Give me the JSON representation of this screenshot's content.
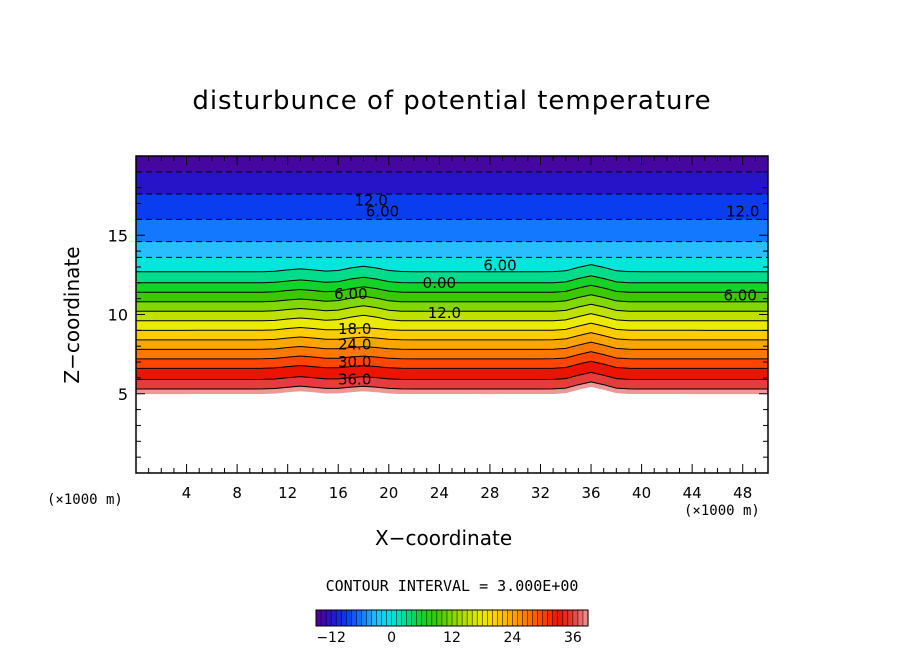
{
  "chart_data": {
    "type": "heatmap",
    "title": "disturbunce of potential temperature",
    "xlabel": "X−coordinate",
    "ylabel": "Z−coordinate",
    "x_unit": "(×1000 m)",
    "y_unit": "(×1000 m)",
    "xlim": [
      0,
      50
    ],
    "ylim": [
      0,
      20
    ],
    "x_ticks": [
      4,
      8,
      12,
      16,
      20,
      24,
      28,
      32,
      36,
      40,
      44,
      48
    ],
    "y_ticks": [
      5,
      10,
      15
    ],
    "contour_interval_text": "CONTOUR INTERVAL = 3.000E+00",
    "contour_labels": [
      {
        "text": "12.0",
        "x": 18.6,
        "y": 17.2
      },
      {
        "text": "6.00",
        "x": 19.5,
        "y": 16.5
      },
      {
        "text": "6.00",
        "x": 28.8,
        "y": 13.1
      },
      {
        "text": "12.0",
        "x": 48.0,
        "y": 16.5
      },
      {
        "text": "0.00",
        "x": 24.0,
        "y": 12.0
      },
      {
        "text": "6.00",
        "x": 17.0,
        "y": 11.3
      },
      {
        "text": "6.00",
        "x": 47.8,
        "y": 11.2
      },
      {
        "text": "12.0",
        "x": 24.4,
        "y": 10.1
      },
      {
        "text": "18.0",
        "x": 17.3,
        "y": 9.1
      },
      {
        "text": "24.0",
        "x": 17.3,
        "y": 8.1
      },
      {
        "text": "30.0",
        "x": 17.3,
        "y": 7.0
      },
      {
        "text": "36.0",
        "x": 17.3,
        "y": 5.9
      }
    ],
    "color_levels": [
      -15,
      -12,
      -9,
      -6,
      -3,
      0,
      3,
      6,
      9,
      12,
      15,
      18,
      21,
      24,
      27,
      30,
      33,
      36,
      39
    ],
    "colorbar_ticks": [
      -12,
      0,
      12,
      24,
      36
    ],
    "field_bands": [
      {
        "from_z": 5.0,
        "to_z": 5.3,
        "value": 39
      },
      {
        "from_z": 5.3,
        "to_z": 5.9,
        "value": 36
      },
      {
        "from_z": 5.9,
        "to_z": 6.6,
        "value": 33
      },
      {
        "from_z": 6.6,
        "to_z": 7.2,
        "value": 30
      },
      {
        "from_z": 7.2,
        "to_z": 7.8,
        "value": 27
      },
      {
        "from_z": 7.8,
        "to_z": 8.4,
        "value": 24
      },
      {
        "from_z": 8.4,
        "to_z": 9.0,
        "value": 21
      },
      {
        "from_z": 9.0,
        "to_z": 9.6,
        "value": 18
      },
      {
        "from_z": 9.6,
        "to_z": 10.2,
        "value": 15
      },
      {
        "from_z": 10.2,
        "to_z": 10.8,
        "value": 12
      },
      {
        "from_z": 10.8,
        "to_z": 11.4,
        "value": 9
      },
      {
        "from_z": 11.4,
        "to_z": 12.0,
        "value": 6
      },
      {
        "from_z": 12.0,
        "to_z": 12.7,
        "value": 3
      },
      {
        "from_z": 12.7,
        "to_z": 13.6,
        "value": 0
      },
      {
        "from_z": 13.6,
        "to_z": 14.6,
        "value": -3
      },
      {
        "from_z": 14.6,
        "to_z": 16.0,
        "value": -6
      },
      {
        "from_z": 16.0,
        "to_z": 17.6,
        "value": -9
      },
      {
        "from_z": 17.6,
        "to_z": 19.0,
        "value": -12
      },
      {
        "from_z": 19.0,
        "to_z": 20.0,
        "value": -14
      }
    ]
  }
}
